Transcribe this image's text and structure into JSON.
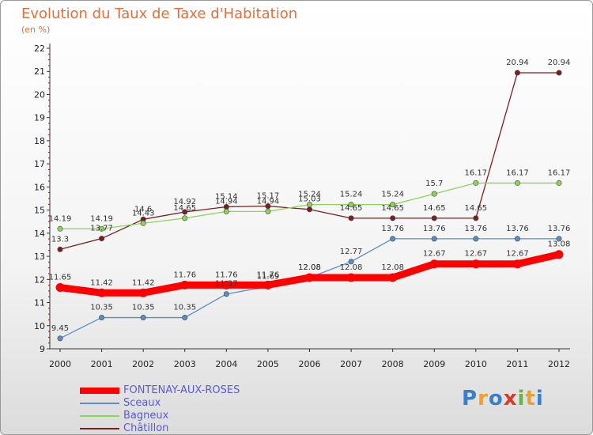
{
  "chart_data": {
    "type": "line",
    "title": "Evolution du Taux de Taxe d'Habitation",
    "subtitle": "(en %)",
    "x": [
      "2000",
      "2001",
      "2002",
      "2003",
      "2004",
      "2005",
      "2006",
      "2007",
      "2008",
      "2009",
      "2010",
      "2011",
      "2012"
    ],
    "ylim": [
      9,
      22
    ],
    "yticks": [
      "9",
      "10",
      "11",
      "12",
      "13",
      "14",
      "15",
      "16",
      "17",
      "18",
      "19",
      "20",
      "21",
      "22"
    ],
    "grid": false,
    "legend_position": "bottom-left",
    "series": [
      {
        "name": "Châtillon",
        "color": "#7a1f1f",
        "values": [
          13.3,
          13.77,
          14.6,
          14.92,
          15.14,
          15.17,
          15.03,
          14.65,
          14.65,
          14.65,
          14.65,
          20.94,
          20.94
        ],
        "labels": [
          "13.3",
          "13.77",
          "14.6",
          "14.92",
          "15.14",
          "15.17",
          "15.03",
          "14.65",
          "14.65",
          "14.65",
          "14.65",
          "20.94",
          "20.94"
        ]
      },
      {
        "name": "Bagneux",
        "color": "#8cd45a",
        "values": [
          14.19,
          14.19,
          14.43,
          14.65,
          14.94,
          14.94,
          15.24,
          15.24,
          15.24,
          15.7,
          16.17,
          16.17,
          16.17
        ],
        "labels": [
          "14.19",
          "14.19",
          "14.43",
          "14.65",
          "14.94",
          "14.94",
          "15.24",
          "15.24",
          "15.24",
          "15.7",
          "16.17",
          "16.17",
          "16.17"
        ]
      },
      {
        "name": "Sceaux",
        "color": "#5a8ec6",
        "values": [
          9.45,
          10.35,
          10.35,
          10.35,
          11.37,
          11.69,
          12.08,
          12.77,
          13.76,
          13.76,
          13.76,
          13.76,
          13.76
        ],
        "labels": [
          "9.45",
          "10.35",
          "10.35",
          "10.35",
          "11.37",
          "11.69",
          "12.08",
          "12.77",
          "13.76",
          "13.76",
          "13.76",
          "13.76",
          "13.76"
        ]
      },
      {
        "name": "FONTENAY-AUX-ROSES",
        "color": "#ff0000",
        "values": [
          11.65,
          11.42,
          11.42,
          11.76,
          11.76,
          11.76,
          12.08,
          12.08,
          12.08,
          12.67,
          12.67,
          12.67,
          13.08
        ],
        "labels": [
          "11.65",
          "11.42",
          "11.42",
          "11.76",
          "11.76",
          "11.76",
          "12.08",
          "12.08",
          "12.08",
          "12.67",
          "12.67",
          "12.67",
          "13.08"
        ]
      }
    ],
    "legend": [
      "FONTENAY-AUX-ROSES",
      "Sceaux",
      "Bagneux",
      "Châtillon"
    ]
  },
  "legend_colors": {
    "FONTENAY-AUX-ROSES": "#ff0000",
    "Sceaux": "#5a8ec6",
    "Bagneux": "#8cd45a",
    "Châtillon": "#7a1f1f"
  },
  "logo": {
    "letters": [
      "P",
      "r",
      "o",
      "x",
      "i",
      "t",
      "i"
    ],
    "colors": [
      "#3a7fc8",
      "#e8a13a",
      "#3a7fc8",
      "#d63a2a",
      "#6ab04c",
      "#e8a13a",
      "#3a7fc8"
    ]
  }
}
